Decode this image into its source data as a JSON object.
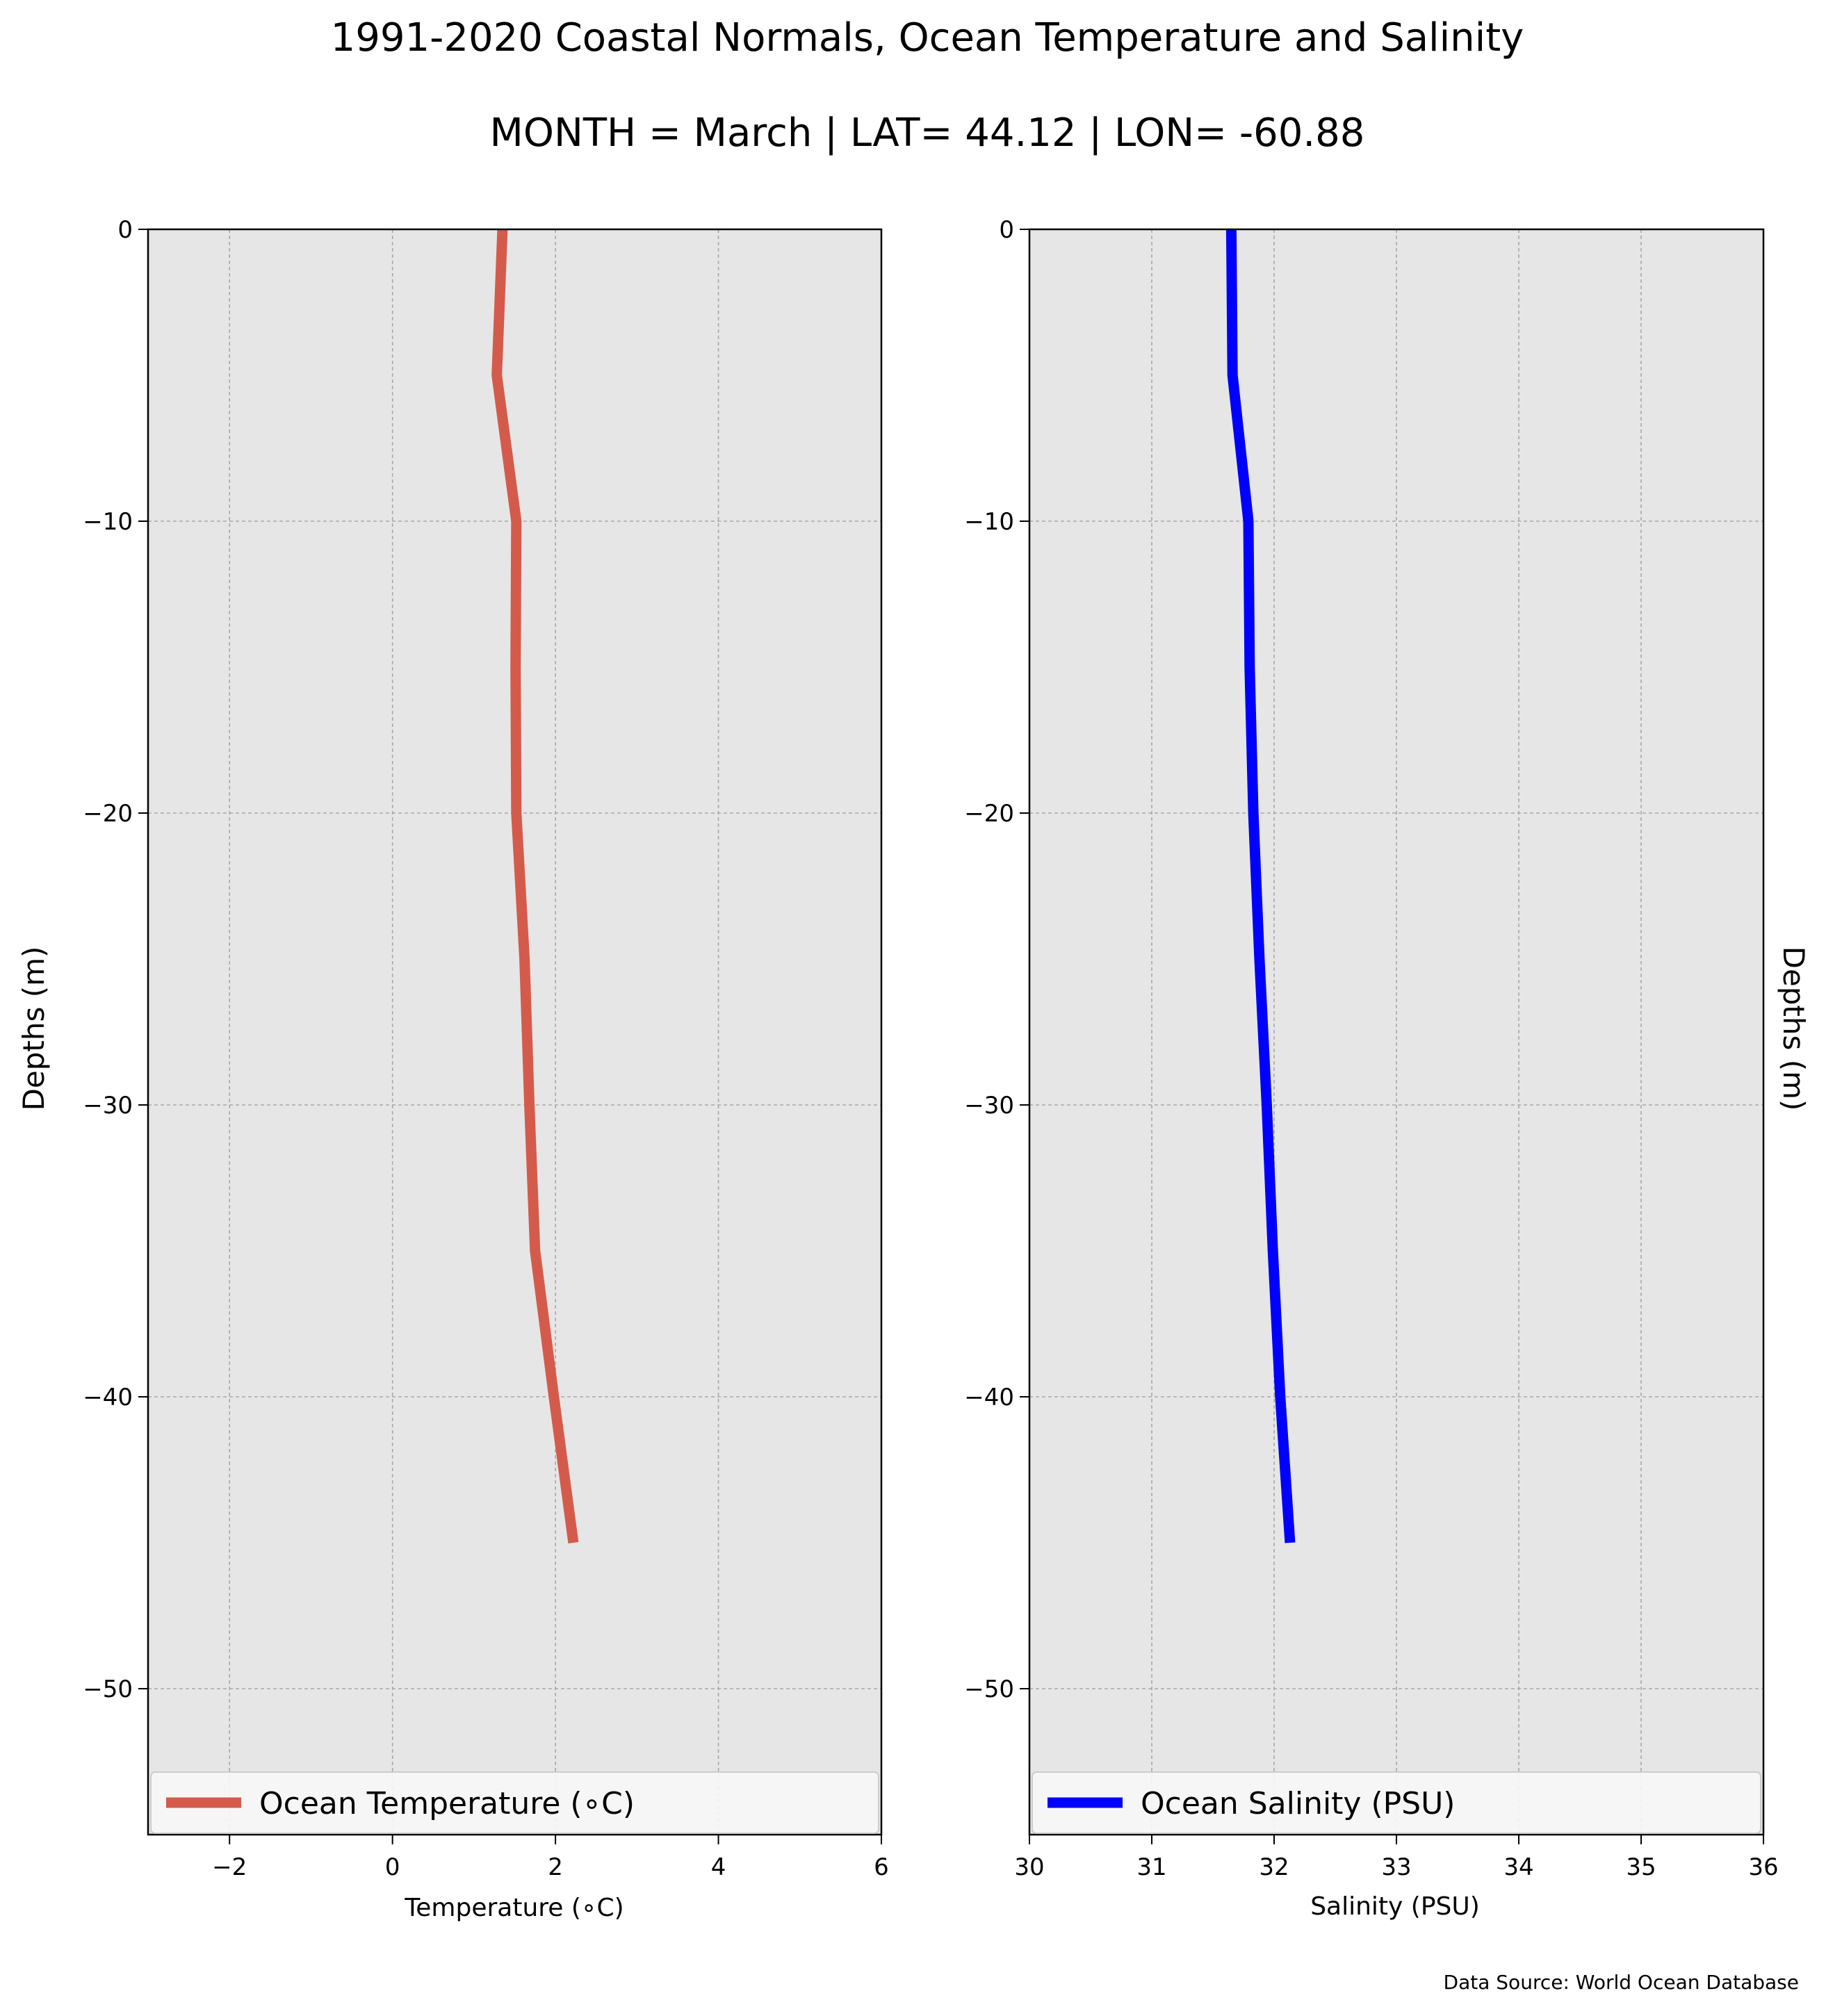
{
  "figure": {
    "title": "1991-2020 Coastal Normals, Ocean Temperature and Salinity",
    "subtitle": "MONTH = March | LAT= 44.12 | LON= -60.88",
    "source_note": "Data Source: World Ocean Database"
  },
  "chart_data": [
    {
      "type": "line",
      "xlabel": "Temperature ($^\\circ$C)",
      "xlabel_display": "Temperature (∘C)",
      "ylabel": "Depths (m)",
      "xlim": [
        -3,
        6
      ],
      "ylim": [
        -55,
        0
      ],
      "xticks": [
        -2,
        0,
        2,
        4,
        6
      ],
      "xtick_labels": [
        "−2",
        "0",
        "2",
        "4",
        "6"
      ],
      "yticks": [
        0,
        -10,
        -20,
        -30,
        -40,
        -50
      ],
      "ytick_labels": [
        "0",
        "−10",
        "−20",
        "−30",
        "−40",
        "−50"
      ],
      "grid": true,
      "legend_position": "bottom",
      "series": [
        {
          "name": "Ocean Temperature (∘C)",
          "color": "#d45b4b",
          "x": [
            1.35,
            1.28,
            1.52,
            1.51,
            1.52,
            1.62,
            1.68,
            1.75,
            1.98,
            2.22
          ],
          "y": [
            0,
            -5,
            -10,
            -15,
            -20,
            -25,
            -30,
            -35,
            -40,
            -45
          ]
        }
      ]
    },
    {
      "type": "line",
      "xlabel": "Salinity (PSU)",
      "ylabel": "Depths (m)",
      "xlim": [
        30,
        36
      ],
      "ylim": [
        -55,
        0
      ],
      "xticks": [
        30,
        31,
        32,
        33,
        34,
        35,
        36
      ],
      "xtick_labels": [
        "30",
        "31",
        "32",
        "33",
        "34",
        "35",
        "36"
      ],
      "yticks": [
        0,
        -10,
        -20,
        -30,
        -40,
        -50
      ],
      "ytick_labels": [
        "0",
        "−10",
        "−20",
        "−30",
        "−40",
        "−50"
      ],
      "grid": true,
      "legend_position": "bottom",
      "series": [
        {
          "name": "Ocean Salinity (PSU)",
          "color": "#0000ff",
          "x": [
            31.65,
            31.66,
            31.79,
            31.8,
            31.83,
            31.88,
            31.94,
            31.99,
            32.05,
            32.13
          ],
          "y": [
            0,
            -5,
            -10,
            -15,
            -20,
            -25,
            -30,
            -35,
            -40,
            -45
          ]
        }
      ]
    }
  ],
  "style": {
    "axes_background": "#e6e6e6",
    "grid_color": "#a8a8a8",
    "legend_background": "#f7f7f7"
  }
}
